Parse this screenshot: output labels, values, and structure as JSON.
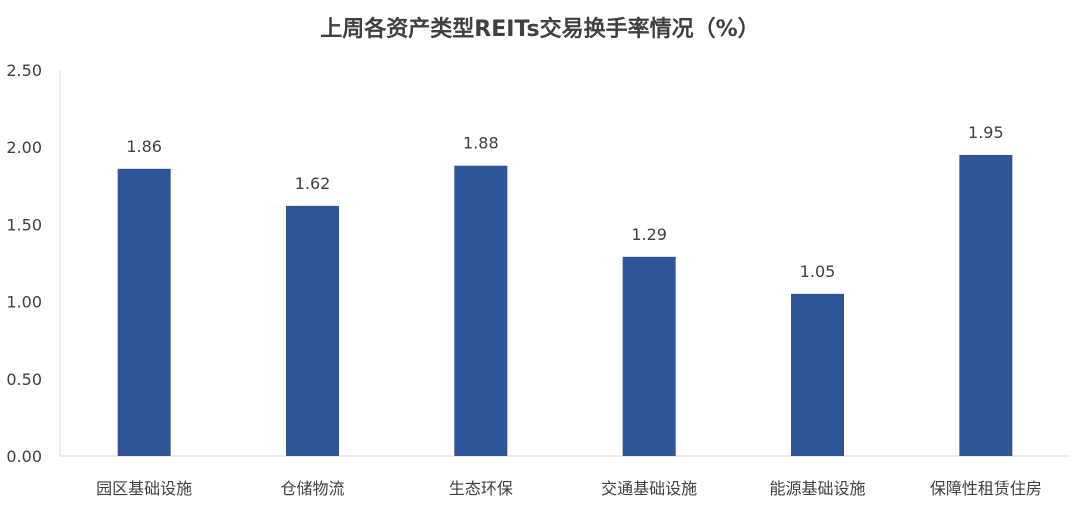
{
  "chart_data": {
    "type": "bar",
    "title": "上周各资产类型REITs交易换手率情况（%）",
    "categories": [
      "园区基础设施",
      "仓储物流",
      "生态环保",
      "交通基础设施",
      "能源基础设施",
      "保障性租赁住房"
    ],
    "values": [
      1.86,
      1.62,
      1.88,
      1.29,
      1.05,
      1.95
    ],
    "value_labels": [
      "1.86",
      "1.62",
      "1.88",
      "1.29",
      "1.05",
      "1.95"
    ],
    "yticks": [
      "0.00",
      "0.50",
      "1.00",
      "1.50",
      "2.00",
      "2.50"
    ],
    "ylim": [
      0,
      2.5
    ],
    "xlabel": "",
    "ylabel": "",
    "grid": false,
    "legend": "none",
    "bar_color": "#2E5597"
  }
}
